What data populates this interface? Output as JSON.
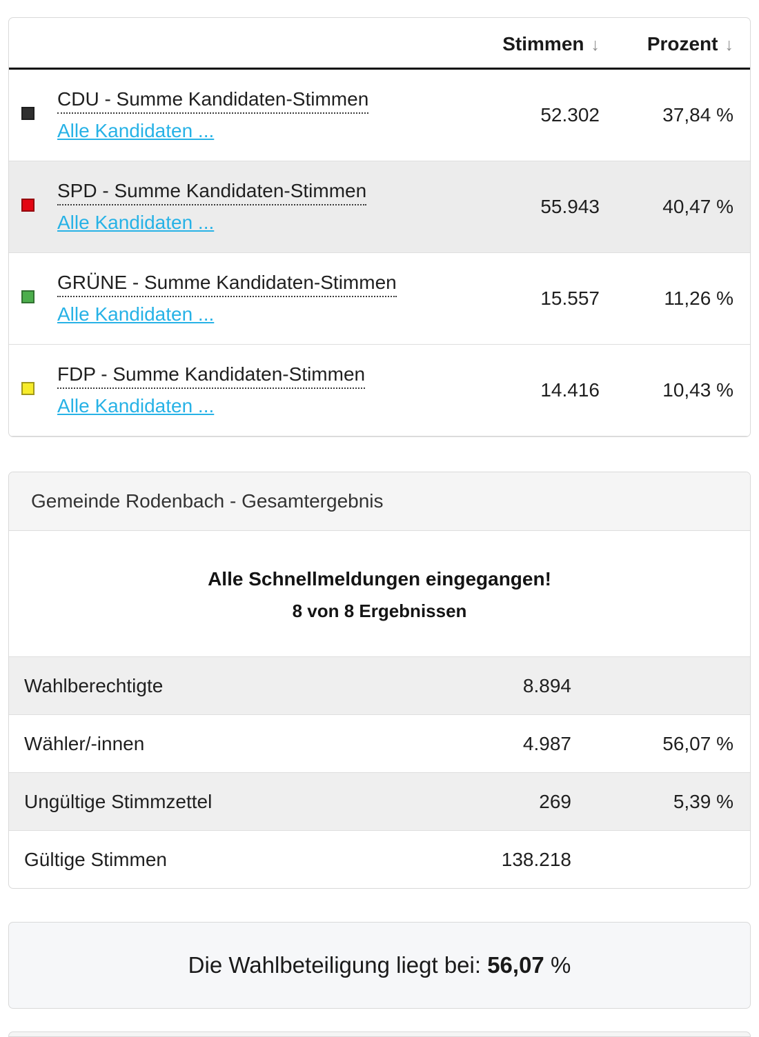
{
  "results_table": {
    "columns": [
      {
        "label": "Stimmen",
        "sort_icon": "↓"
      },
      {
        "label": "Prozent",
        "sort_icon": "↓"
      }
    ],
    "rows": [
      {
        "party": "CDU - Summe Kandidaten-Stimmen",
        "link": "Alle Kandidaten ...",
        "stimmen": "52.302",
        "prozent": "37,84 %",
        "color": "#2e2e2e",
        "striped": false
      },
      {
        "party": "SPD - Summe Kandidaten-Stimmen",
        "link": "Alle Kandidaten ...",
        "stimmen": "55.943",
        "prozent": "40,47 %",
        "color": "#e30613",
        "striped": true
      },
      {
        "party": "GRÜNE - Summe Kandidaten-Stimmen",
        "link": "Alle Kandidaten ...",
        "stimmen": "15.557",
        "prozent": "11,26 %",
        "color": "#4cae4c",
        "striped": false
      },
      {
        "party": "FDP - Summe Kandidaten-Stimmen",
        "link": "Alle Kandidaten ...",
        "stimmen": "14.416",
        "prozent": "10,43 %",
        "color": "#f7ec2a",
        "striped": false
      }
    ]
  },
  "summary_panel": {
    "title": "Gemeinde Rodenbach - Gesamtergebnis",
    "status_line1": "Alle Schnellmeldungen eingegangen!",
    "status_line2": "8 von 8 Ergebnissen",
    "stats": [
      {
        "label": "Wahlberechtigte",
        "value": "8.894",
        "percent": "",
        "striped": true
      },
      {
        "label": "Wähler/-innen",
        "value": "4.987",
        "percent": "56,07 %",
        "striped": false
      },
      {
        "label": "Ungültige Stimmzettel",
        "value": "269",
        "percent": "5,39 %",
        "striped": true
      },
      {
        "label": "Gültige Stimmen",
        "value": "138.218",
        "percent": "",
        "striped": false
      }
    ]
  },
  "turnout_panel": {
    "prefix": "Die Wahlbeteiligung liegt bei: ",
    "value": "56,07",
    "suffix": " %"
  },
  "colors": {
    "link": "#27b2e6",
    "stripe": "#ececec",
    "heading_bg": "#f5f5f5",
    "turnout_bg": "#f6f7f9",
    "header_rule": "#0a0a0a"
  }
}
